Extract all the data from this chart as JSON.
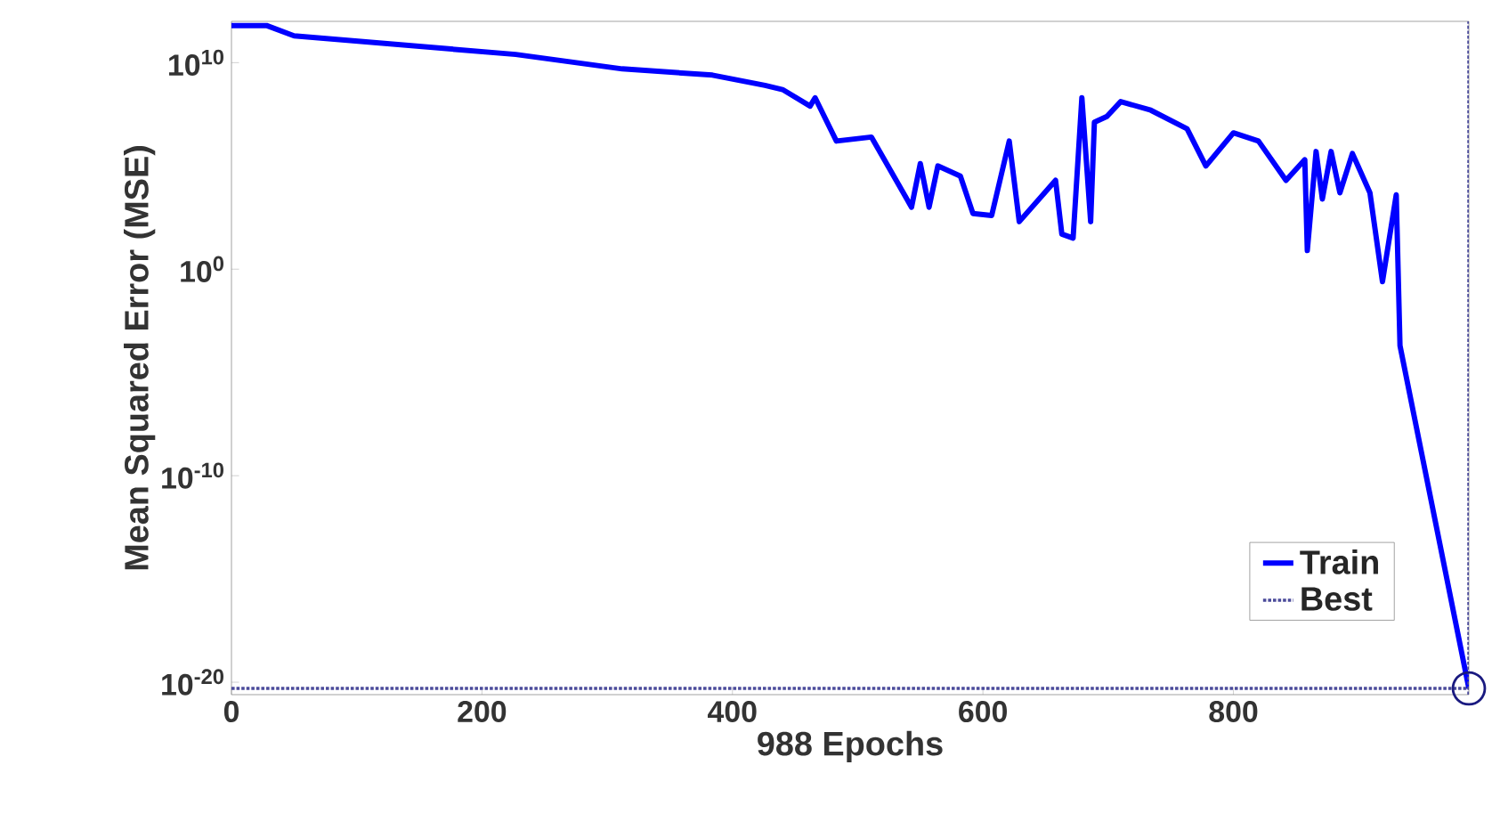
{
  "chart_data": {
    "type": "line",
    "xlabel": "988 Epochs",
    "ylabel": "Mean Squared Error  (MSE)",
    "xlim": [
      0,
      988
    ],
    "ylim": [
      2.5e-21,
      1000000000000.0
    ],
    "log": true,
    "grid": false,
    "legend": "bottom right",
    "xticks": [
      0,
      200,
      400,
      600,
      800
    ],
    "yticks": [
      {
        "value": 1e-20,
        "label": "10$^{-20}$"
      },
      {
        "value": 1e-10,
        "label": "10$^{-10}$"
      },
      {
        "value": 1,
        "label": "10$^{0}$"
      },
      {
        "value": 10000000000.0,
        "label": "10$^{10}$"
      }
    ],
    "ref_lines": [
      {
        "axis": "x",
        "value": 988,
        "label": "Best",
        "color": "#4b4b9b",
        "line_style": "dotted"
      },
      {
        "axis": "y",
        "value": 5e-21,
        "color": "#4b4b9b",
        "line_style": "dotted"
      }
    ],
    "series": [
      {
        "name": "Train",
        "color": "#0000ff",
        "line_style": "solid",
        "x": [
          0,
          28,
          50,
          227,
          312,
          384,
          426,
          440,
          462,
          466,
          483,
          511,
          543,
          550,
          557,
          564,
          582,
          592,
          607,
          621,
          629,
          658,
          663,
          672,
          679,
          686,
          689,
          699,
          710,
          734,
          763,
          778,
          800,
          820,
          842,
          857,
          859,
          866,
          871,
          878,
          885,
          895,
          909,
          919,
          930,
          933,
          988
        ],
        "values": [
          630000000000.0,
          630000000000.0,
          200000000000.0,
          25000000000.0,
          5000000000.0,
          2500000000.0,
          790000000.0,
          500000000.0,
          79000000.0,
          200000000.0,
          1600000.0,
          2500000.0,
          1000.0,
          130000.0,
          1000.0,
          100000.0,
          32000.0,
          500,
          400,
          1600000.0,
          200,
          20000.0,
          50,
          32,
          200000000.0,
          200,
          13000000.0,
          25000000.0,
          130000000.0,
          50000000.0,
          6300000.0,
          100000.0,
          4000000.0,
          1600000.0,
          20000.0,
          200000.0,
          8,
          500000.0,
          2500.0,
          500000.0,
          5000.0,
          400000.0,
          5000.0,
          0.25,
          4000.0,
          0.0002,
          5e-21
        ]
      },
      {
        "type": "scatter",
        "color": "#1a1a80",
        "marker": "circle",
        "x": [
          988
        ],
        "values": [
          5e-21
        ]
      }
    ]
  }
}
